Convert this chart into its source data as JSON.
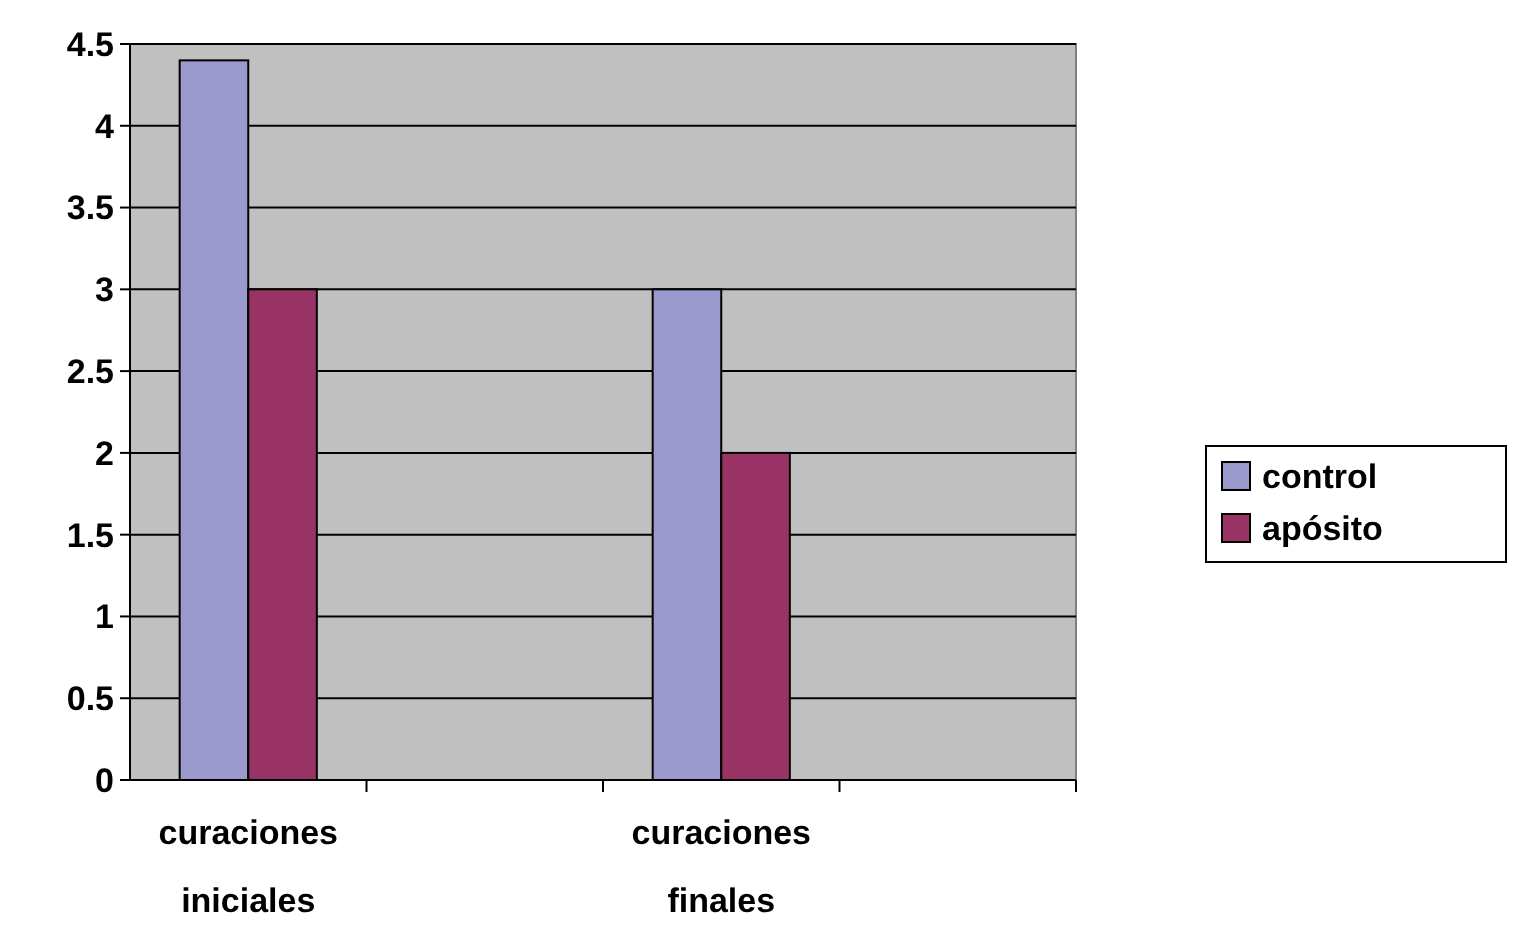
{
  "chart_data": {
    "type": "bar",
    "categories": [
      "curaciones iniciales",
      null,
      "curaciones finales",
      null
    ],
    "series": [
      {
        "name": "control",
        "color": "#9999cc",
        "values": [
          4.4,
          null,
          3,
          null
        ]
      },
      {
        "name": "apósito",
        "color": "#993366",
        "values": [
          3,
          null,
          2,
          null
        ]
      }
    ],
    "ylim": [
      0,
      4.5
    ],
    "yticks": [
      0,
      0.5,
      1,
      1.5,
      2,
      2.5,
      3,
      3.5,
      4,
      4.5
    ],
    "grid": "y",
    "legend": "right"
  }
}
